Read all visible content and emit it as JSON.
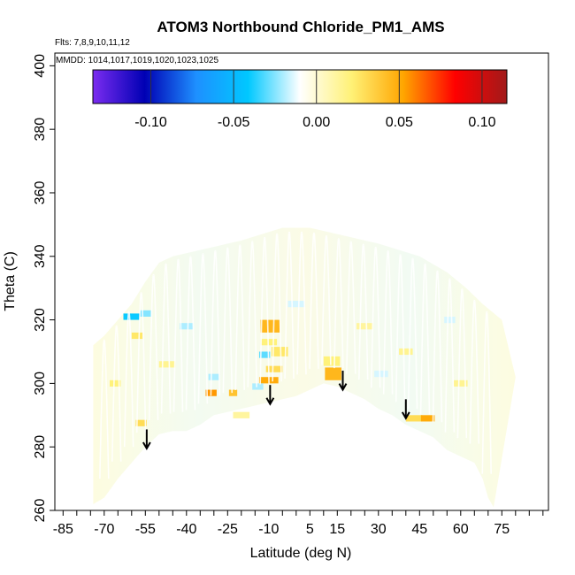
{
  "chart_data": {
    "type": "heatmap",
    "title": "ATOM3 Northbound Chloride_PM1_AMS",
    "flights_text": "Flts: 7,8,9,10,11,12",
    "mmdd_text": "MMDD: 1014,1017,1019,1020,1023,1025",
    "xlabel": "Latitude (deg N)",
    "ylabel": "Theta (C)",
    "xlim": [
      -88,
      92
    ],
    "ylim": [
      260,
      404
    ],
    "x_ticks": [
      -85,
      -70,
      -55,
      -40,
      -25,
      -10,
      5,
      15,
      30,
      45,
      60,
      75
    ],
    "x_tick_labels": [
      "-85",
      "-70",
      "-55",
      "-40",
      "-25",
      "-10",
      "5",
      "15",
      "30",
      "45",
      "60",
      "75"
    ],
    "x_minor_step": 5,
    "y_ticks": [
      260,
      280,
      300,
      320,
      340,
      360,
      380,
      400
    ],
    "y_tick_labels": [
      "260",
      "280",
      "300",
      "320",
      "340",
      "360",
      "380",
      "400"
    ],
    "colorbar": {
      "range": [
        -0.135,
        0.115
      ],
      "ticks": [
        -0.1,
        -0.05,
        0.0,
        0.05,
        0.1
      ],
      "tick_labels": [
        "-0.10",
        "-0.05",
        "0.00",
        "0.05",
        "0.10"
      ],
      "colors": [
        "#7b2cf0",
        "#0000b4",
        "#1e90ff",
        "#00c8ff",
        "#ffffff",
        "#fff176",
        "#ffa500",
        "#ff0000",
        "#a11a1a"
      ]
    },
    "domain_lower_boundary": [
      [
        -74,
        262
      ],
      [
        -70,
        264
      ],
      [
        -65,
        270
      ],
      [
        -60,
        275
      ],
      [
        -55,
        280
      ],
      [
        -50,
        284
      ],
      [
        -45,
        285
      ],
      [
        -40,
        285
      ],
      [
        -35,
        287
      ],
      [
        -30,
        290
      ],
      [
        -20,
        292
      ],
      [
        -10,
        294
      ],
      [
        0,
        296
      ],
      [
        5,
        298
      ],
      [
        10,
        300
      ],
      [
        15,
        299
      ],
      [
        20,
        297
      ],
      [
        25,
        295
      ],
      [
        30,
        292
      ],
      [
        35,
        290
      ],
      [
        40,
        287
      ],
      [
        45,
        285
      ],
      [
        50,
        283
      ],
      [
        55,
        279
      ],
      [
        60,
        277
      ],
      [
        65,
        275
      ],
      [
        68,
        270
      ],
      [
        70,
        264
      ],
      [
        72,
        261
      ]
    ],
    "domain_upper_boundary": [
      [
        -74,
        312
      ],
      [
        -70,
        315
      ],
      [
        -65,
        320
      ],
      [
        -60,
        325
      ],
      [
        -55,
        332
      ],
      [
        -50,
        338
      ],
      [
        -45,
        340
      ],
      [
        -35,
        342
      ],
      [
        -20,
        345
      ],
      [
        -5,
        349
      ],
      [
        5,
        349
      ],
      [
        15,
        347
      ],
      [
        30,
        344
      ],
      [
        45,
        340
      ],
      [
        55,
        335
      ],
      [
        62,
        330
      ],
      [
        68,
        325
      ],
      [
        75,
        320
      ],
      [
        80,
        302
      ]
    ],
    "patches": [
      {
        "lat": -9.5,
        "theta": 318,
        "w": 7,
        "h": 4,
        "value": 0.045
      },
      {
        "lat": -6.0,
        "theta": 310,
        "w": 6,
        "h": 3,
        "value": 0.025
      },
      {
        "lat": -10.0,
        "theta": 301,
        "w": 7,
        "h": 2,
        "value": 0.05
      },
      {
        "lat": -8.0,
        "theta": 304.5,
        "w": 6,
        "h": 2,
        "value": 0.03
      },
      {
        "lat": -10.0,
        "theta": 313,
        "w": 6,
        "h": 2,
        "value": 0.02
      },
      {
        "lat": 13.5,
        "theta": 303,
        "w": 6,
        "h": 4,
        "value": 0.045
      },
      {
        "lat": 13.0,
        "theta": 307,
        "w": 6,
        "h": 3,
        "value": 0.02
      },
      {
        "lat": -31.0,
        "theta": 297,
        "w": 4,
        "h": 2,
        "value": 0.055
      },
      {
        "lat": -23.0,
        "theta": 297,
        "w": 3,
        "h": 2,
        "value": 0.04
      },
      {
        "lat": 43.0,
        "theta": 289,
        "w": 6,
        "h": 2,
        "value": 0.03
      },
      {
        "lat": 48.0,
        "theta": 289,
        "w": 5,
        "h": 2,
        "value": 0.05
      },
      {
        "lat": -56.5,
        "theta": 287.5,
        "w": 4,
        "h": 2,
        "value": 0.03
      },
      {
        "lat": -58.0,
        "theta": 315,
        "w": 4,
        "h": 2,
        "value": 0.025
      },
      {
        "lat": -60.0,
        "theta": 321,
        "w": 6,
        "h": 2,
        "value": -0.04
      },
      {
        "lat": -55.0,
        "theta": 322,
        "w": 4,
        "h": 2,
        "value": -0.025
      },
      {
        "lat": -11.5,
        "theta": 309,
        "w": 4,
        "h": 2,
        "value": -0.03
      },
      {
        "lat": -14.0,
        "theta": 299,
        "w": 4,
        "h": 2,
        "value": -0.02
      },
      {
        "lat": -30.0,
        "theta": 302,
        "w": 4,
        "h": 2,
        "value": -0.02
      },
      {
        "lat": -40.0,
        "theta": 318,
        "w": 5,
        "h": 2,
        "value": -0.02
      },
      {
        "lat": -66.0,
        "theta": 300,
        "w": 4,
        "h": 2,
        "value": 0.02
      },
      {
        "lat": 31.0,
        "theta": 303,
        "w": 5,
        "h": 2,
        "value": -0.015
      },
      {
        "lat": 40.0,
        "theta": 310,
        "w": 5,
        "h": 2,
        "value": 0.015
      },
      {
        "lat": 56.0,
        "theta": 320,
        "w": 4,
        "h": 2,
        "value": -0.015
      },
      {
        "lat": 60.0,
        "theta": 300,
        "w": 5,
        "h": 2,
        "value": 0.015
      },
      {
        "lat": -47.0,
        "theta": 306,
        "w": 6,
        "h": 2,
        "value": 0.015
      },
      {
        "lat": 0.0,
        "theta": 325,
        "w": 6,
        "h": 2,
        "value": -0.015
      },
      {
        "lat": 25.0,
        "theta": 318,
        "w": 6,
        "h": 2,
        "value": 0.012
      },
      {
        "lat": -20.0,
        "theta": 290,
        "w": 6,
        "h": 2,
        "value": 0.012
      }
    ],
    "arrows": [
      {
        "lat": -54.5,
        "theta_top": 285.5,
        "theta_tip": 279.5
      },
      {
        "lat": -9.5,
        "theta_top": 299.5,
        "theta_tip": 293.5
      },
      {
        "lat": 17.0,
        "theta_top": 304.0,
        "theta_tip": 298.0
      },
      {
        "lat": 40.0,
        "theta_top": 295.0,
        "theta_tip": 289.0
      }
    ],
    "grid": false,
    "legend": "colorbar-top"
  }
}
